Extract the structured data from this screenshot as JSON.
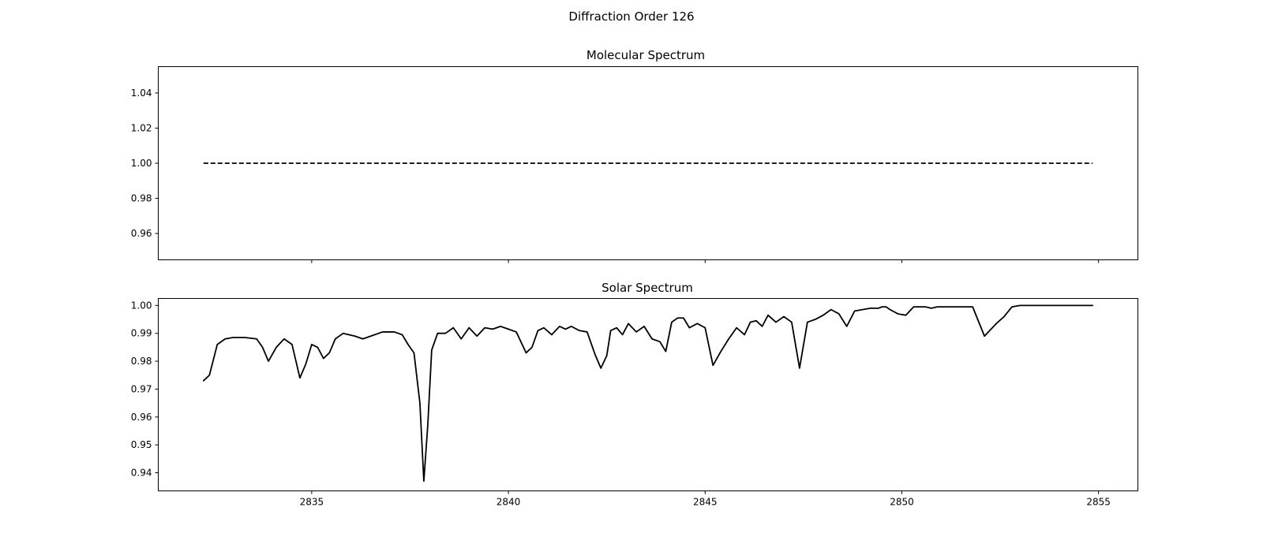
{
  "suptitle": "Diffraction Order 126",
  "chart_data": [
    {
      "type": "line",
      "title": "Molecular Spectrum",
      "xlabel": "",
      "ylabel": "",
      "xlim": [
        2831.1,
        2856.0
      ],
      "ylim": [
        0.945,
        1.055
      ],
      "yticks": [
        "0.96",
        "0.98",
        "1.00",
        "1.02",
        "1.04"
      ],
      "xticks_labels_shown": false,
      "series": [
        {
          "style": "dashed",
          "color": "#000000",
          "x": [
            2832.25,
            2854.85
          ],
          "y": [
            1.0,
            1.0
          ]
        }
      ]
    },
    {
      "type": "line",
      "title": "Solar Spectrum",
      "xlabel": "",
      "ylabel": "",
      "xlim": [
        2831.1,
        2856.0
      ],
      "ylim": [
        0.9335,
        1.0025
      ],
      "xticks": [
        "2835",
        "2840",
        "2845",
        "2850",
        "2855"
      ],
      "yticks": [
        "0.94",
        "0.95",
        "0.96",
        "0.97",
        "0.98",
        "0.99",
        "1.00"
      ],
      "series": [
        {
          "style": "solid",
          "color": "#000000",
          "x": [
            2832.25,
            2832.4,
            2832.6,
            2832.8,
            2833.0,
            2833.3,
            2833.6,
            2833.75,
            2833.9,
            2834.1,
            2834.3,
            2834.5,
            2834.7,
            2834.85,
            2835.0,
            2835.15,
            2835.3,
            2835.45,
            2835.6,
            2835.8,
            2836.1,
            2836.3,
            2836.5,
            2836.8,
            2837.1,
            2837.3,
            2837.45,
            2837.6,
            2837.75,
            2837.85,
            2837.95,
            2838.05,
            2838.2,
            2838.4,
            2838.6,
            2838.8,
            2839.0,
            2839.2,
            2839.4,
            2839.6,
            2839.8,
            2840.0,
            2840.2,
            2840.45,
            2840.6,
            2840.75,
            2840.9,
            2841.1,
            2841.3,
            2841.45,
            2841.6,
            2841.8,
            2842.0,
            2842.2,
            2842.35,
            2842.5,
            2842.6,
            2842.75,
            2842.9,
            2843.05,
            2843.25,
            2843.45,
            2843.65,
            2843.85,
            2844.0,
            2844.15,
            2844.3,
            2844.45,
            2844.6,
            2844.8,
            2845.0,
            2845.2,
            2845.4,
            2845.6,
            2845.8,
            2846.0,
            2846.15,
            2846.3,
            2846.45,
            2846.6,
            2846.8,
            2847.0,
            2847.2,
            2847.4,
            2847.6,
            2847.8,
            2848.0,
            2848.2,
            2848.4,
            2848.6,
            2848.8,
            2849.0,
            2849.2,
            2849.3,
            2849.4,
            2849.5,
            2849.6,
            2849.7,
            2849.9,
            2850.1,
            2850.3,
            2850.45,
            2850.6,
            2850.75,
            2850.9,
            2851.1,
            2851.3,
            2851.5,
            2851.8,
            2852.1,
            2852.4,
            2852.6,
            2852.8,
            2853.0,
            2853.2,
            2853.4,
            2853.6,
            2853.8,
            2853.95,
            2854.1,
            2854.25,
            2854.4,
            2854.55,
            2854.7,
            2854.85
          ],
          "y": [
            0.973,
            0.975,
            0.986,
            0.988,
            0.9885,
            0.9885,
            0.988,
            0.985,
            0.98,
            0.985,
            0.988,
            0.986,
            0.974,
            0.979,
            0.986,
            0.985,
            0.981,
            0.983,
            0.988,
            0.99,
            0.989,
            0.988,
            0.989,
            0.9905,
            0.9905,
            0.9895,
            0.986,
            0.983,
            0.965,
            0.937,
            0.957,
            0.984,
            0.99,
            0.99,
            0.992,
            0.988,
            0.992,
            0.989,
            0.992,
            0.9915,
            0.9925,
            0.9915,
            0.9905,
            0.983,
            0.985,
            0.991,
            0.992,
            0.9895,
            0.9925,
            0.9915,
            0.9925,
            0.991,
            0.9905,
            0.9825,
            0.9775,
            0.982,
            0.991,
            0.992,
            0.9895,
            0.9935,
            0.9905,
            0.9925,
            0.988,
            0.987,
            0.9835,
            0.994,
            0.9955,
            0.9955,
            0.992,
            0.9935,
            0.992,
            0.9785,
            0.9835,
            0.988,
            0.992,
            0.9895,
            0.994,
            0.9945,
            0.9925,
            0.9965,
            0.994,
            0.996,
            0.994,
            0.9775,
            0.994,
            0.995,
            0.9965,
            0.9985,
            0.997,
            0.9925,
            0.998,
            0.9985,
            0.999,
            0.999,
            0.999,
            0.9995,
            0.9995,
            0.9985,
            0.997,
            0.9965,
            0.9995,
            0.9995,
            0.9995,
            0.999,
            0.9995,
            0.9995,
            0.9995,
            0.9995,
            0.9995,
            0.989,
            0.9935,
            0.996,
            0.9995,
            1.0,
            1.0,
            1.0,
            1.0,
            1.0,
            1.0,
            1.0,
            1.0,
            1.0,
            1.0,
            1.0,
            1.0
          ],
          "y_override_note": "",
          "y_full": [
            0.973,
            0.975,
            0.986,
            0.988,
            0.9885,
            0.9885,
            0.988,
            0.985,
            0.98,
            0.985,
            0.988,
            0.986,
            0.974,
            0.979,
            0.986,
            0.985,
            0.981,
            0.983,
            0.988,
            0.99,
            0.989,
            0.988,
            0.989,
            0.9905,
            0.9905,
            0.9895,
            0.986,
            0.983,
            0.965,
            0.937,
            0.957,
            0.984,
            0.99,
            0.99,
            0.992,
            0.988,
            0.992,
            0.989,
            0.992,
            0.9915,
            0.9925,
            0.9915,
            0.9905,
            0.983,
            0.985,
            0.991,
            0.992,
            0.9895,
            0.9925,
            0.9915,
            0.9925,
            0.991,
            0.9905,
            0.9825,
            0.9775,
            0.982,
            0.991,
            0.992,
            0.9895,
            0.9935,
            0.9905,
            0.9925,
            0.988,
            0.987,
            0.9835,
            0.994,
            0.9955,
            0.9955,
            0.992,
            0.9935,
            0.992,
            0.9785,
            0.9835,
            0.988,
            0.992,
            0.9895,
            0.994,
            0.9945,
            0.9925,
            0.9965,
            0.994,
            0.996,
            0.994,
            0.9775,
            0.994,
            0.995,
            0.9965,
            0.9985,
            0.997,
            0.9925,
            0.998,
            0.9985,
            0.999,
            0.999,
            0.999,
            0.9995,
            0.9995,
            0.9985,
            0.997,
            0.9965,
            0.9995,
            0.9995,
            0.9995,
            0.999,
            0.9995,
            0.9995,
            0.9995,
            0.9995,
            0.9995,
            0.989,
            0.9935,
            0.996,
            0.9995,
            1.0,
            1.0,
            1.0,
            1.0,
            1.0,
            1.0,
            1.0,
            1.0,
            1.0,
            1.0,
            1.0,
            1.0
          ]
        }
      ]
    }
  ]
}
